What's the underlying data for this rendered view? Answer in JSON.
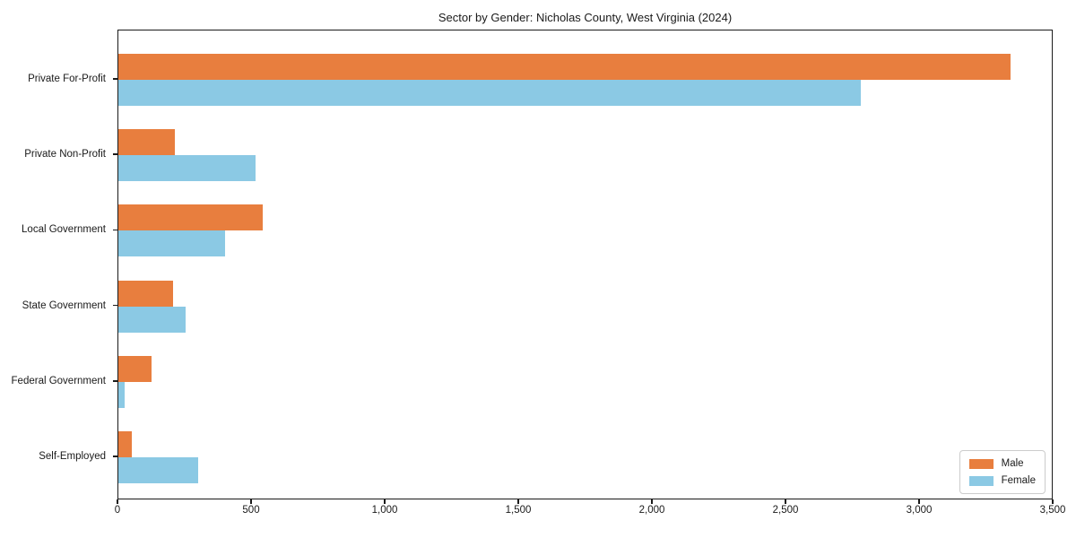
{
  "chart_data": {
    "type": "bar",
    "orientation": "horizontal",
    "title": "Sector by Gender: Nicholas County, West Virginia (2024)",
    "categories": [
      "Private For-Profit",
      "Private Non-Profit",
      "Local Government",
      "State Government",
      "Federal Government",
      "Self-Employed"
    ],
    "series": [
      {
        "name": "Male",
        "color": "#e87e3e",
        "values": [
          3340,
          210,
          540,
          205,
          125,
          50
        ]
      },
      {
        "name": "Female",
        "color": "#8bc9e4",
        "values": [
          2780,
          515,
          400,
          250,
          25,
          300
        ]
      }
    ],
    "xlabel": "",
    "ylabel": "",
    "xlim": [
      0,
      3500
    ],
    "xticks": [
      0,
      500,
      1000,
      1500,
      2000,
      2500,
      3000,
      3500
    ],
    "xtick_labels": [
      "0",
      "500",
      "1,000",
      "1,500",
      "2,000",
      "2,500",
      "3,000",
      "3,500"
    ],
    "grid": false,
    "legend_position": "lower right",
    "frame_color": "#1a1a1a"
  }
}
